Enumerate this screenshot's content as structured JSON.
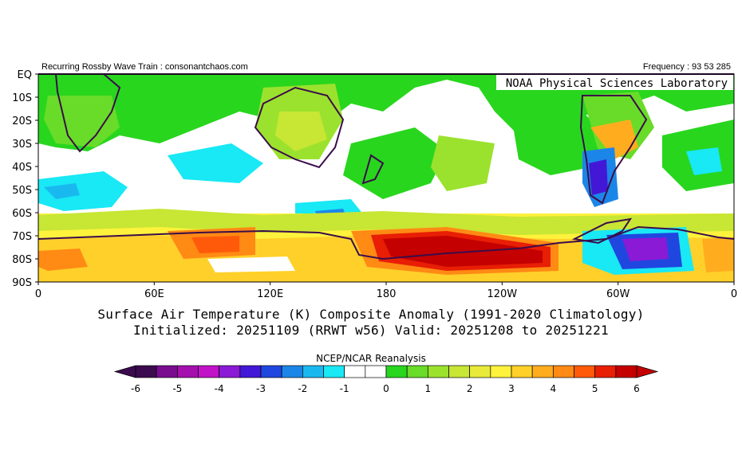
{
  "header": {
    "left": "Recurring Rossby Wave Train : consonantchaos.com",
    "right": "Frequency : 93 53 285",
    "lab": "NOAA Physical Sciences Laboratory"
  },
  "map": {
    "y_axis_labels": [
      "EQ",
      "10S",
      "20S",
      "30S",
      "40S",
      "50S",
      "60S",
      "70S",
      "80S",
      "90S"
    ],
    "x_axis_labels": [
      "0",
      "60E",
      "120E",
      "180",
      "120W",
      "60W",
      "0"
    ],
    "continent_color": "#3a0d4a"
  },
  "titles": {
    "line1": "Surface Air Temperature (K) Composite Anomaly (1991-2020 Climatology)",
    "line2": "Initialized: 20251109 (RRWT w56) Valid: 20251208 to 20251221"
  },
  "colorbar": {
    "label": "NCEP/NCAR Reanalysis",
    "ticks": [
      "-6",
      "-5",
      "-4",
      "-3",
      "-2",
      "-1",
      "0",
      "1",
      "2",
      "3",
      "4",
      "5",
      "6"
    ],
    "colors": [
      "#3c0a4f",
      "#7a0c8f",
      "#a40fae",
      "#c212c8",
      "#8a1ad6",
      "#4218d6",
      "#1f47e0",
      "#1c86e8",
      "#19b9f0",
      "#19e8f5",
      "#ffffff",
      "#ffffff",
      "#28d61e",
      "#68dc28",
      "#9be22e",
      "#c8e634",
      "#e8ea3a",
      "#fff23c",
      "#ffd02a",
      "#ffad1e",
      "#ff8a14",
      "#ff5a0a",
      "#e81e05",
      "#c40000"
    ]
  }
}
